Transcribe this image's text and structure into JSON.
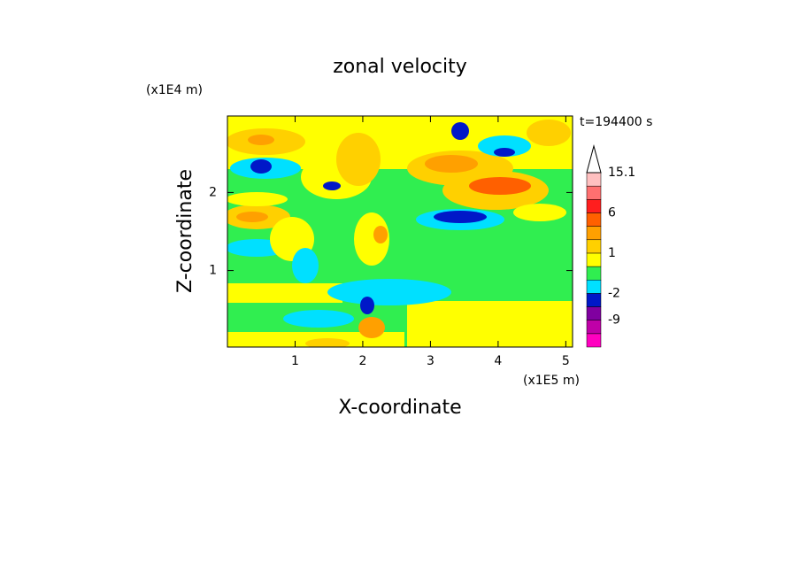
{
  "chart_data": {
    "type": "contour",
    "title": "zonal velocity",
    "x_label": "X-coordinate",
    "y_label": "Z-coordinate",
    "x_unit": "(x1E5 m)",
    "y_unit": "(x1E4 m)",
    "time_label": "t=194400 s",
    "xlim": [
      0,
      5.1
    ],
    "ylim": [
      0.02,
      2.98
    ],
    "xticks": [
      1,
      2,
      3,
      4,
      5
    ],
    "yticks": [
      1,
      2
    ],
    "colorbar": {
      "bounds": [
        -15,
        -12,
        -9,
        -6,
        -2,
        -1,
        0,
        1,
        2,
        3,
        6,
        9,
        12,
        15.1
      ],
      "colors": [
        "#ff00c0",
        "#c000a8",
        "#8000a0",
        "#0018c8",
        "#00e0ff",
        "#30ee50",
        "#ffff00",
        "#ffd000",
        "#ffa000",
        "#ff6000",
        "#ff1e1e",
        "#ff7070",
        "#ffc0c0"
      ],
      "ticks": [
        15.1,
        6,
        1,
        -2,
        -9
      ]
    }
  }
}
